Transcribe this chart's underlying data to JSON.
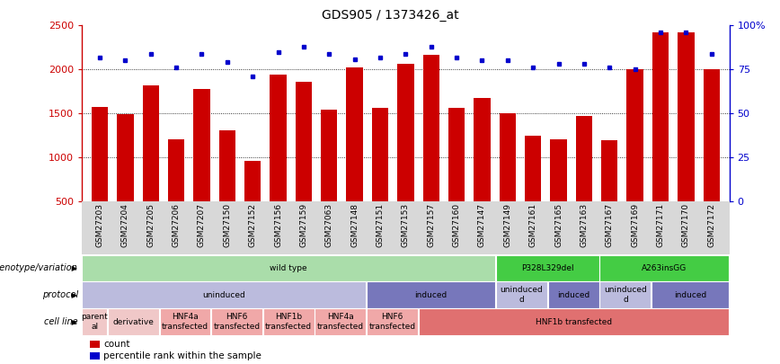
{
  "title": "GDS905 / 1373426_at",
  "samples": [
    "GSM27203",
    "GSM27204",
    "GSM27205",
    "GSM27206",
    "GSM27207",
    "GSM27150",
    "GSM27152",
    "GSM27156",
    "GSM27159",
    "GSM27063",
    "GSM27148",
    "GSM27151",
    "GSM27153",
    "GSM27157",
    "GSM27160",
    "GSM27147",
    "GSM27149",
    "GSM27161",
    "GSM27165",
    "GSM27163",
    "GSM27167",
    "GSM27169",
    "GSM27171",
    "GSM27170",
    "GSM27172"
  ],
  "counts": [
    1570,
    1490,
    1820,
    1210,
    1780,
    1310,
    960,
    1940,
    1860,
    1540,
    2020,
    1560,
    2060,
    2170,
    1560,
    1680,
    1500,
    1250,
    1200,
    1470,
    1190,
    2000,
    2420,
    2420,
    2000
  ],
  "percentiles": [
    82,
    80,
    84,
    76,
    84,
    79,
    71,
    85,
    88,
    84,
    81,
    82,
    84,
    88,
    82,
    80,
    80,
    76,
    78,
    78,
    76,
    75,
    96,
    96,
    84
  ],
  "bar_color": "#cc0000",
  "dot_color": "#0000cc",
  "ylim_left": [
    500,
    2500
  ],
  "ylim_right": [
    0,
    100
  ],
  "grid_values": [
    1000,
    1500,
    2000
  ],
  "right_ticks": [
    0,
    25,
    50,
    75,
    100
  ],
  "right_tick_labels": [
    "0",
    "25",
    "50",
    "75",
    "100%"
  ],
  "left_ticks": [
    500,
    1000,
    1500,
    2000,
    2500
  ],
  "genotype_row": {
    "label": "genotype/variation",
    "segments": [
      {
        "text": "wild type",
        "start": 0,
        "end": 16,
        "color": "#aaddaa"
      },
      {
        "text": "P328L329del",
        "start": 16,
        "end": 20,
        "color": "#44cc44"
      },
      {
        "text": "A263insGG",
        "start": 20,
        "end": 25,
        "color": "#44cc44"
      }
    ]
  },
  "protocol_row": {
    "label": "protocol",
    "segments": [
      {
        "text": "uninduced",
        "start": 0,
        "end": 11,
        "color": "#bbbbdd"
      },
      {
        "text": "induced",
        "start": 11,
        "end": 16,
        "color": "#7777bb"
      },
      {
        "text": "uninduced\nd",
        "start": 16,
        "end": 18,
        "color": "#bbbbdd"
      },
      {
        "text": "induced",
        "start": 18,
        "end": 20,
        "color": "#7777bb"
      },
      {
        "text": "uninduced\nd",
        "start": 20,
        "end": 22,
        "color": "#bbbbdd"
      },
      {
        "text": "induced",
        "start": 22,
        "end": 25,
        "color": "#7777bb"
      }
    ]
  },
  "cellline_row": {
    "label": "cell line",
    "segments": [
      {
        "text": "parent\nal",
        "start": 0,
        "end": 1,
        "color": "#f0c8c8"
      },
      {
        "text": "derivative",
        "start": 1,
        "end": 3,
        "color": "#f0c8c8"
      },
      {
        "text": "HNF4a\ntransfected",
        "start": 3,
        "end": 5,
        "color": "#f0a8a8"
      },
      {
        "text": "HNF6\ntransfected",
        "start": 5,
        "end": 7,
        "color": "#f0a8a8"
      },
      {
        "text": "HNF1b\ntransfected",
        "start": 7,
        "end": 9,
        "color": "#f0a8a8"
      },
      {
        "text": "HNF4a\ntransfected",
        "start": 9,
        "end": 11,
        "color": "#f0a8a8"
      },
      {
        "text": "HNF6\ntransfected",
        "start": 11,
        "end": 13,
        "color": "#f0a8a8"
      },
      {
        "text": "HNF1b transfected",
        "start": 13,
        "end": 25,
        "color": "#e07070"
      }
    ]
  },
  "legend": [
    {
      "color": "#cc0000",
      "label": "count"
    },
    {
      "color": "#0000cc",
      "label": "percentile rank within the sample"
    }
  ]
}
